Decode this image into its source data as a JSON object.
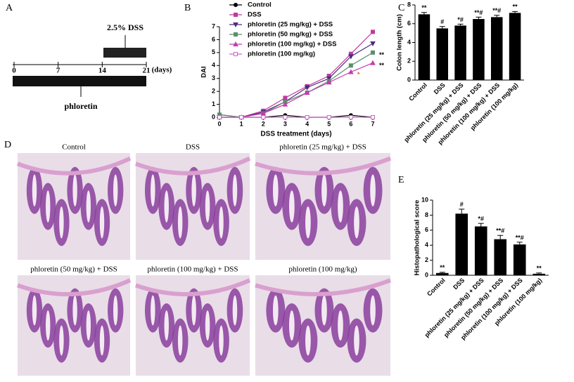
{
  "timeline": {
    "panel": "A",
    "treatment": "2.5% DSS",
    "ticks": [
      0,
      7,
      14,
      21
    ],
    "unit": "(days)",
    "drug": "phloretin"
  },
  "chart_data": [
    {
      "type": "line",
      "panel": "B",
      "xlabel": "DSS treatment (days)",
      "ylabel": "DAI",
      "x": [
        0,
        1,
        2,
        3,
        4,
        5,
        6,
        7
      ],
      "xlim": [
        0,
        7
      ],
      "xticks": [
        0,
        1,
        2,
        3,
        4,
        5,
        6,
        7
      ],
      "ylim": [
        0,
        7
      ],
      "yticks": [
        0,
        1,
        2,
        3,
        4,
        5,
        6,
        7
      ],
      "series": [
        {
          "name": "Control",
          "color": "#000000",
          "marker": "circle",
          "values": [
            0.2,
            0,
            0,
            0.15,
            0,
            0,
            0.15,
            0
          ]
        },
        {
          "name": "DSS",
          "color": "#c2399e",
          "marker": "square",
          "values": [
            0,
            0,
            0.5,
            1.5,
            2.4,
            3.2,
            4.9,
            6.6
          ]
        },
        {
          "name": "phloretin (25 mg/kg) + DSS",
          "color": "#4b2d7f",
          "marker": "down",
          "values": [
            0,
            0,
            0.4,
            1.2,
            2.3,
            3.0,
            4.7,
            5.7
          ]
        },
        {
          "name": "phloretin (50 mg/kg) + DSS",
          "color": "#5a8f6e",
          "marker": "square",
          "values": [
            0.2,
            0,
            0.3,
            1.2,
            1.9,
            2.8,
            4.0,
            5.0
          ]
        },
        {
          "name": "phloretin (100 mg/kg) + DSS",
          "color": "#c83ab0",
          "marker": "up",
          "values": [
            0,
            0,
            0.3,
            1.0,
            1.9,
            2.7,
            3.5,
            4.2
          ]
        },
        {
          "name": "phloretin (100 mg/kg)",
          "color": "#cc66cc",
          "marker": "open",
          "values": [
            0,
            0,
            0,
            0,
            0,
            0,
            0,
            0
          ]
        }
      ],
      "annotations": [
        {
          "text": "**",
          "series": 3,
          "index": 7
        },
        {
          "text": "**",
          "series": 4,
          "index": 7
        },
        {
          "text": "*",
          "series": 4,
          "index": 6
        }
      ]
    },
    {
      "type": "bar",
      "panel": "C",
      "ylabel": "Colon length (cm)",
      "categories": [
        "Control",
        "DSS",
        "phloretin (25 mg/kg) + DSS",
        "phloretin (50 mg/kg) + DSS",
        "phloretin (100 mg/kg) + DSS",
        "phloretin (100 mg/kg)"
      ],
      "values": [
        7.0,
        5.5,
        5.8,
        6.5,
        6.7,
        7.15
      ],
      "errors": [
        0.2,
        0.2,
        0.15,
        0.2,
        0.2,
        0.15
      ],
      "color": "#000000",
      "annotations": [
        "**",
        "#",
        "*#",
        "**#",
        "**#",
        "**"
      ],
      "ylim": [
        0,
        8
      ],
      "yticks": [
        0,
        2,
        4,
        6,
        8
      ]
    },
    {
      "type": "bar",
      "panel": "E",
      "ylabel": "Histopathological score",
      "categories": [
        "Control",
        "DSS",
        "phloretin (25 mg/kg) + DSS",
        "phloretin (50 mg/kg) + DSS",
        "phloretin (100 mg/kg) + DSS",
        "phloretin (100 mg/kg)"
      ],
      "values": [
        0.3,
        8.2,
        6.5,
        4.8,
        4.1,
        0.2
      ],
      "errors": [
        0.1,
        0.6,
        0.4,
        0.5,
        0.3,
        0.1
      ],
      "color": "#000000",
      "annotations": [
        "**",
        "#",
        "*#",
        "**#",
        "**#",
        "**"
      ],
      "ylim": [
        0,
        10
      ],
      "yticks": [
        0,
        2,
        4,
        6,
        8,
        10
      ]
    }
  ],
  "histology": {
    "panel": "D",
    "titles": [
      "Control",
      "DSS",
      "phloretin (25 mg/kg) + DSS",
      "phloretin (50 mg/kg) + DSS",
      "phloretin (100 mg/kg) + DSS",
      "phloretin (100 mg/kg)"
    ]
  }
}
